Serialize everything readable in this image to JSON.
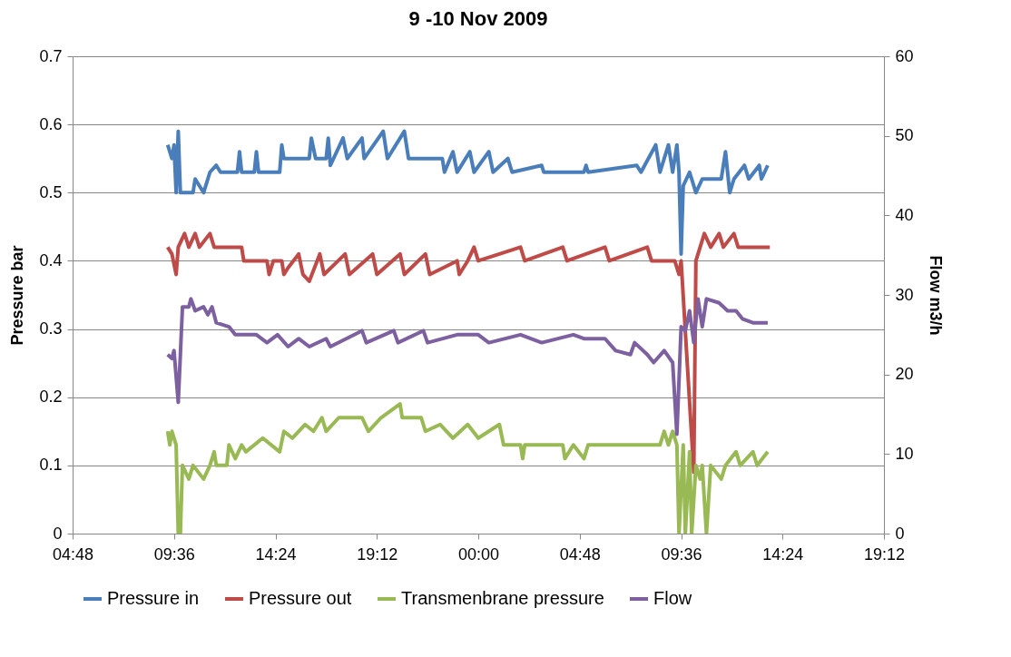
{
  "chart_data": {
    "type": "line",
    "title": "9 -10 Nov 2009",
    "ylabel": "Pressure bar",
    "y2label": "Flow m3/h",
    "xlim": [
      "2009-11-09T04:48",
      "2009-11-10T19:12"
    ],
    "xticks": [
      {
        "value": "2009-11-09T04:48",
        "label": "04:48"
      },
      {
        "value": "2009-11-09T09:36",
        "label": "09:36"
      },
      {
        "value": "2009-11-09T14:24",
        "label": "14:24"
      },
      {
        "value": "2009-11-09T19:12",
        "label": "19:12"
      },
      {
        "value": "2009-11-10T00:00",
        "label": "00:00"
      },
      {
        "value": "2009-11-10T04:48",
        "label": "04:48"
      },
      {
        "value": "2009-11-10T09:36",
        "label": "09:36"
      },
      {
        "value": "2009-11-10T14:24",
        "label": "14:24"
      },
      {
        "value": "2009-11-10T19:12",
        "label": "19:12"
      }
    ],
    "ylim": [
      0,
      0.7
    ],
    "yticks": [
      0,
      0.1,
      0.2,
      0.3,
      0.4,
      0.5,
      0.6,
      0.7
    ],
    "y2lim": [
      0,
      60
    ],
    "y2ticks": [
      0,
      10,
      20,
      30,
      40,
      50,
      60
    ],
    "grid": "y",
    "legend": "bottom",
    "series": [
      {
        "name": "Pressure in",
        "color": "#4a7ebb",
        "x": [
          "2009-11-09T09:18",
          "2009-11-09T09:30",
          "2009-11-09T09:36",
          "2009-11-09T09:42",
          "2009-11-09T09:48",
          "2009-11-09T09:54",
          "2009-11-09T10:30",
          "2009-11-09T10:36",
          "2009-11-09T11:00",
          "2009-11-09T11:18",
          "2009-11-09T11:36",
          "2009-11-09T11:48",
          "2009-11-09T12:36",
          "2009-11-09T12:42",
          "2009-11-09T12:48",
          "2009-11-09T13:24",
          "2009-11-09T13:30",
          "2009-11-09T13:36",
          "2009-11-09T14:36",
          "2009-11-09T14:42",
          "2009-11-09T14:48",
          "2009-11-09T16:00",
          "2009-11-09T16:06",
          "2009-11-09T16:18",
          "2009-11-09T16:48",
          "2009-11-09T16:54",
          "2009-11-09T17:00",
          "2009-11-09T17:36",
          "2009-11-09T17:48",
          "2009-11-09T18:30",
          "2009-11-09T18:36",
          "2009-11-09T19:30",
          "2009-11-09T19:42",
          "2009-11-09T20:30",
          "2009-11-09T20:42",
          "2009-11-09T22:18",
          "2009-11-09T22:24",
          "2009-11-09T22:48",
          "2009-11-09T23:00",
          "2009-11-09T23:36",
          "2009-11-09T23:48",
          "2009-11-10T00:30",
          "2009-11-10T00:42",
          "2009-11-10T01:24",
          "2009-11-10T01:36",
          "2009-11-10T03:00",
          "2009-11-10T03:06",
          "2009-11-10T05:00",
          "2009-11-10T05:06",
          "2009-11-10T05:12",
          "2009-11-10T07:30",
          "2009-11-10T07:42",
          "2009-11-10T08:24",
          "2009-11-10T08:36",
          "2009-11-10T09:00",
          "2009-11-10T09:12",
          "2009-11-10T09:24",
          "2009-11-10T09:30",
          "2009-11-10T09:36",
          "2009-11-10T09:42",
          "2009-11-10T10:00",
          "2009-11-10T10:18",
          "2009-11-10T10:36",
          "2009-11-10T11:30",
          "2009-11-10T11:42",
          "2009-11-10T11:54",
          "2009-11-10T12:06",
          "2009-11-10T12:36",
          "2009-11-10T12:48",
          "2009-11-10T13:18",
          "2009-11-10T13:24",
          "2009-11-10T13:42"
        ],
        "values": [
          0.57,
          0.55,
          0.57,
          0.5,
          0.59,
          0.5,
          0.5,
          0.52,
          0.5,
          0.53,
          0.54,
          0.53,
          0.53,
          0.56,
          0.53,
          0.53,
          0.56,
          0.53,
          0.53,
          0.57,
          0.55,
          0.55,
          0.58,
          0.55,
          0.55,
          0.58,
          0.54,
          0.58,
          0.55,
          0.58,
          0.55,
          0.59,
          0.55,
          0.59,
          0.55,
          0.55,
          0.53,
          0.56,
          0.53,
          0.56,
          0.53,
          0.56,
          0.53,
          0.55,
          0.53,
          0.54,
          0.53,
          0.53,
          0.54,
          0.53,
          0.54,
          0.53,
          0.57,
          0.53,
          0.57,
          0.53,
          0.57,
          0.53,
          0.41,
          0.51,
          0.53,
          0.5,
          0.52,
          0.52,
          0.56,
          0.5,
          0.52,
          0.54,
          0.52,
          0.54,
          0.52,
          0.54
        ]
      },
      {
        "name": "Pressure out",
        "color": "#be4b48",
        "x": [
          "2009-11-09T09:18",
          "2009-11-09T09:30",
          "2009-11-09T09:42",
          "2009-11-09T09:48",
          "2009-11-09T10:06",
          "2009-11-09T10:18",
          "2009-11-09T10:36",
          "2009-11-09T10:48",
          "2009-11-09T11:18",
          "2009-11-09T11:30",
          "2009-11-09T12:48",
          "2009-11-09T12:54",
          "2009-11-09T14:00",
          "2009-11-09T14:06",
          "2009-11-09T14:18",
          "2009-11-09T14:42",
          "2009-11-09T14:48",
          "2009-11-09T15:00",
          "2009-11-09T15:30",
          "2009-11-09T15:42",
          "2009-11-09T16:00",
          "2009-11-09T16:30",
          "2009-11-09T16:42",
          "2009-11-09T17:42",
          "2009-11-09T17:54",
          "2009-11-09T19:00",
          "2009-11-09T19:12",
          "2009-11-09T20:18",
          "2009-11-09T20:30",
          "2009-11-09T21:30",
          "2009-11-09T21:42",
          "2009-11-09T23:00",
          "2009-11-09T23:06",
          "2009-11-09T23:30",
          "2009-11-09T23:48",
          "2009-11-10T00:00",
          "2009-11-10T02:00",
          "2009-11-10T02:12",
          "2009-11-10T04:00",
          "2009-11-10T04:12",
          "2009-11-10T06:00",
          "2009-11-10T06:12",
          "2009-11-10T08:00",
          "2009-11-10T08:12",
          "2009-11-10T09:18",
          "2009-11-10T09:30",
          "2009-11-10T09:36",
          "2009-11-10T10:12",
          "2009-11-10T10:18",
          "2009-11-10T10:30",
          "2009-11-10T10:42",
          "2009-11-10T11:00",
          "2009-11-10T11:24",
          "2009-11-10T11:36",
          "2009-11-10T12:06",
          "2009-11-10T12:18",
          "2009-11-10T13:48"
        ],
        "values": [
          0.42,
          0.41,
          0.38,
          0.42,
          0.44,
          0.42,
          0.44,
          0.42,
          0.44,
          0.42,
          0.42,
          0.4,
          0.4,
          0.38,
          0.4,
          0.4,
          0.38,
          0.39,
          0.41,
          0.38,
          0.37,
          0.41,
          0.38,
          0.41,
          0.38,
          0.41,
          0.38,
          0.41,
          0.38,
          0.41,
          0.38,
          0.4,
          0.38,
          0.4,
          0.42,
          0.4,
          0.42,
          0.4,
          0.42,
          0.4,
          0.42,
          0.4,
          0.42,
          0.4,
          0.4,
          0.38,
          0.4,
          0.09,
          0.4,
          0.42,
          0.44,
          0.42,
          0.44,
          0.42,
          0.44,
          0.42,
          0.42
        ]
      },
      {
        "name": "Transmenbrane pressure",
        "color": "#98b954",
        "x": [
          "2009-11-09T09:18",
          "2009-11-09T09:24",
          "2009-11-09T09:30",
          "2009-11-09T09:42",
          "2009-11-09T09:48",
          "2009-11-09T09:54",
          "2009-11-09T10:00",
          "2009-11-09T10:18",
          "2009-11-09T10:30",
          "2009-11-09T11:00",
          "2009-11-09T11:18",
          "2009-11-09T11:30",
          "2009-11-09T11:36",
          "2009-11-09T12:06",
          "2009-11-09T12:12",
          "2009-11-09T12:30",
          "2009-11-09T12:48",
          "2009-11-09T13:00",
          "2009-11-09T13:48",
          "2009-11-09T14:36",
          "2009-11-09T14:48",
          "2009-11-09T15:12",
          "2009-11-09T15:48",
          "2009-11-09T16:12",
          "2009-11-09T16:36",
          "2009-11-09T16:48",
          "2009-11-09T17:24",
          "2009-11-09T18:30",
          "2009-11-09T18:48",
          "2009-11-09T19:24",
          "2009-11-09T20:18",
          "2009-11-09T20:24",
          "2009-11-09T21:18",
          "2009-11-09T21:30",
          "2009-11-09T22:12",
          "2009-11-09T22:48",
          "2009-11-09T23:30",
          "2009-11-10T00:00",
          "2009-11-10T01:00",
          "2009-11-10T01:12",
          "2009-11-10T02:00",
          "2009-11-10T02:06",
          "2009-11-10T02:12",
          "2009-11-10T04:00",
          "2009-11-10T04:06",
          "2009-11-10T04:30",
          "2009-11-10T05:00",
          "2009-11-10T05:12",
          "2009-11-10T08:36",
          "2009-11-10T08:48",
          "2009-11-10T09:00",
          "2009-11-10T09:12",
          "2009-11-10T09:24",
          "2009-11-10T09:30",
          "2009-11-10T09:42",
          "2009-11-10T09:48",
          "2009-11-10T10:00",
          "2009-11-10T10:06",
          "2009-11-10T10:18",
          "2009-11-10T10:30",
          "2009-11-10T10:36",
          "2009-11-10T10:48",
          "2009-11-10T11:00",
          "2009-11-10T11:30",
          "2009-11-10T11:42",
          "2009-11-10T12:12",
          "2009-11-10T12:24",
          "2009-11-10T13:00",
          "2009-11-10T13:12",
          "2009-11-10T13:42"
        ],
        "values": [
          0.15,
          0.13,
          0.15,
          0.13,
          0,
          0,
          0.1,
          0.08,
          0.1,
          0.08,
          0.1,
          0.12,
          0.1,
          0.1,
          0.13,
          0.11,
          0.13,
          0.12,
          0.14,
          0.12,
          0.15,
          0.14,
          0.16,
          0.15,
          0.17,
          0.15,
          0.17,
          0.17,
          0.15,
          0.17,
          0.19,
          0.17,
          0.17,
          0.15,
          0.16,
          0.14,
          0.16,
          0.14,
          0.16,
          0.13,
          0.13,
          0.11,
          0.13,
          0.13,
          0.11,
          0.13,
          0.11,
          0.13,
          0.13,
          0.15,
          0.13,
          0.15,
          0.13,
          0,
          0.13,
          0,
          0.12,
          0,
          0.1,
          0.08,
          0.1,
          0,
          0.1,
          0.08,
          0.1,
          0.12,
          0.1,
          0.12,
          0.1,
          0.12
        ]
      },
      {
        "name": "Flow",
        "color": "#7d60a0",
        "axis": "y2",
        "x": [
          "2009-11-09T09:18",
          "2009-11-09T09:30",
          "2009-11-09T09:36",
          "2009-11-09T09:48",
          "2009-11-09T10:00",
          "2009-11-09T10:18",
          "2009-11-09T10:24",
          "2009-11-09T10:36",
          "2009-11-09T11:00",
          "2009-11-09T11:12",
          "2009-11-09T11:24",
          "2009-11-09T11:36",
          "2009-11-09T12:12",
          "2009-11-09T12:30",
          "2009-11-09T13:30",
          "2009-11-09T14:00",
          "2009-11-09T14:30",
          "2009-11-09T15:00",
          "2009-11-09T15:30",
          "2009-11-09T16:00",
          "2009-11-09T16:48",
          "2009-11-09T17:00",
          "2009-11-09T18:30",
          "2009-11-09T18:42",
          "2009-11-09T20:00",
          "2009-11-09T20:12",
          "2009-11-09T21:24",
          "2009-11-09T21:36",
          "2009-11-09T23:00",
          "2009-11-10T00:00",
          "2009-11-10T00:30",
          "2009-11-10T02:00",
          "2009-11-10T03:00",
          "2009-11-10T04:30",
          "2009-11-10T05:00",
          "2009-11-10T06:00",
          "2009-11-10T06:30",
          "2009-11-10T07:12",
          "2009-11-10T07:24",
          "2009-11-10T08:00",
          "2009-11-10T08:18",
          "2009-11-10T08:48",
          "2009-11-10T09:12",
          "2009-11-10T09:24",
          "2009-11-10T09:36",
          "2009-11-10T09:48",
          "2009-11-10T10:00",
          "2009-11-10T10:12",
          "2009-11-10T10:24",
          "2009-11-10T10:36",
          "2009-11-10T10:48",
          "2009-11-10T11:24",
          "2009-11-10T11:48",
          "2009-11-10T12:12",
          "2009-11-10T12:30",
          "2009-11-10T13:00",
          "2009-11-10T13:42"
        ],
        "values": [
          22.5,
          22,
          23,
          16.5,
          28.5,
          28.5,
          29.5,
          28,
          28.5,
          27.5,
          28.5,
          26.5,
          26,
          25,
          25,
          24,
          25,
          23.5,
          24.5,
          23.5,
          24.5,
          23.5,
          25.5,
          24,
          25.5,
          24,
          25.5,
          24,
          25,
          25,
          24,
          25,
          24,
          25,
          24.5,
          24.5,
          23,
          22.5,
          24,
          22.5,
          21.5,
          23,
          21.5,
          12.5,
          26,
          25.5,
          28,
          24,
          29.5,
          26,
          29.5,
          29,
          28,
          28,
          27,
          26.5,
          26.5
        ]
      }
    ]
  }
}
